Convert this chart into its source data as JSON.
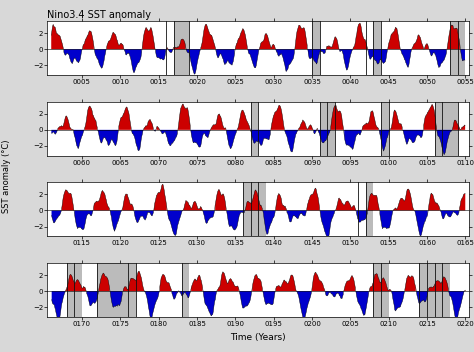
{
  "title": "Nino3.4 SST anomaly",
  "ylabel": "SST anomaly (°C)",
  "xlabel": "Time (Years)",
  "ylim": [
    -3.2,
    3.5
  ],
  "yticks": [
    -2.0,
    0.0,
    2.0
  ],
  "row_ranges": [
    [
      1,
      55
    ],
    [
      56,
      110
    ],
    [
      111,
      165
    ],
    [
      166,
      220
    ]
  ],
  "background_color": "#d8d8d8",
  "plot_bg": "#ffffff",
  "red_color": "#cc0000",
  "blue_color": "#0000cc",
  "vline_color": "#111111",
  "shade_color": "#b0b0b0",
  "vlines_row0": [
    16,
    17,
    19,
    35,
    36,
    42,
    43,
    44,
    53,
    54
  ],
  "vlines_row1": [
    82,
    83,
    91,
    92,
    93,
    99,
    100,
    106,
    107,
    109
  ],
  "vlines_row2": [
    136,
    137,
    138,
    151,
    152
  ],
  "vlines_row3": [
    168,
    169,
    172,
    176,
    177,
    183,
    208,
    209,
    214,
    215,
    216,
    217
  ],
  "shade_ranges_row0": [
    [
      17,
      19
    ],
    [
      35,
      36
    ],
    [
      43,
      44
    ],
    [
      53,
      55
    ]
  ],
  "shade_ranges_row1": [
    [
      82,
      83
    ],
    [
      91,
      93
    ],
    [
      99,
      100
    ],
    [
      106,
      109
    ]
  ],
  "shade_ranges_row2": [
    [
      136,
      139
    ],
    [
      152,
      153
    ]
  ],
  "shade_ranges_row3": [
    [
      168,
      170
    ],
    [
      172,
      177
    ],
    [
      183,
      184
    ],
    [
      208,
      210
    ],
    [
      214,
      218
    ]
  ],
  "n_years": 220,
  "months_per_year": 12
}
